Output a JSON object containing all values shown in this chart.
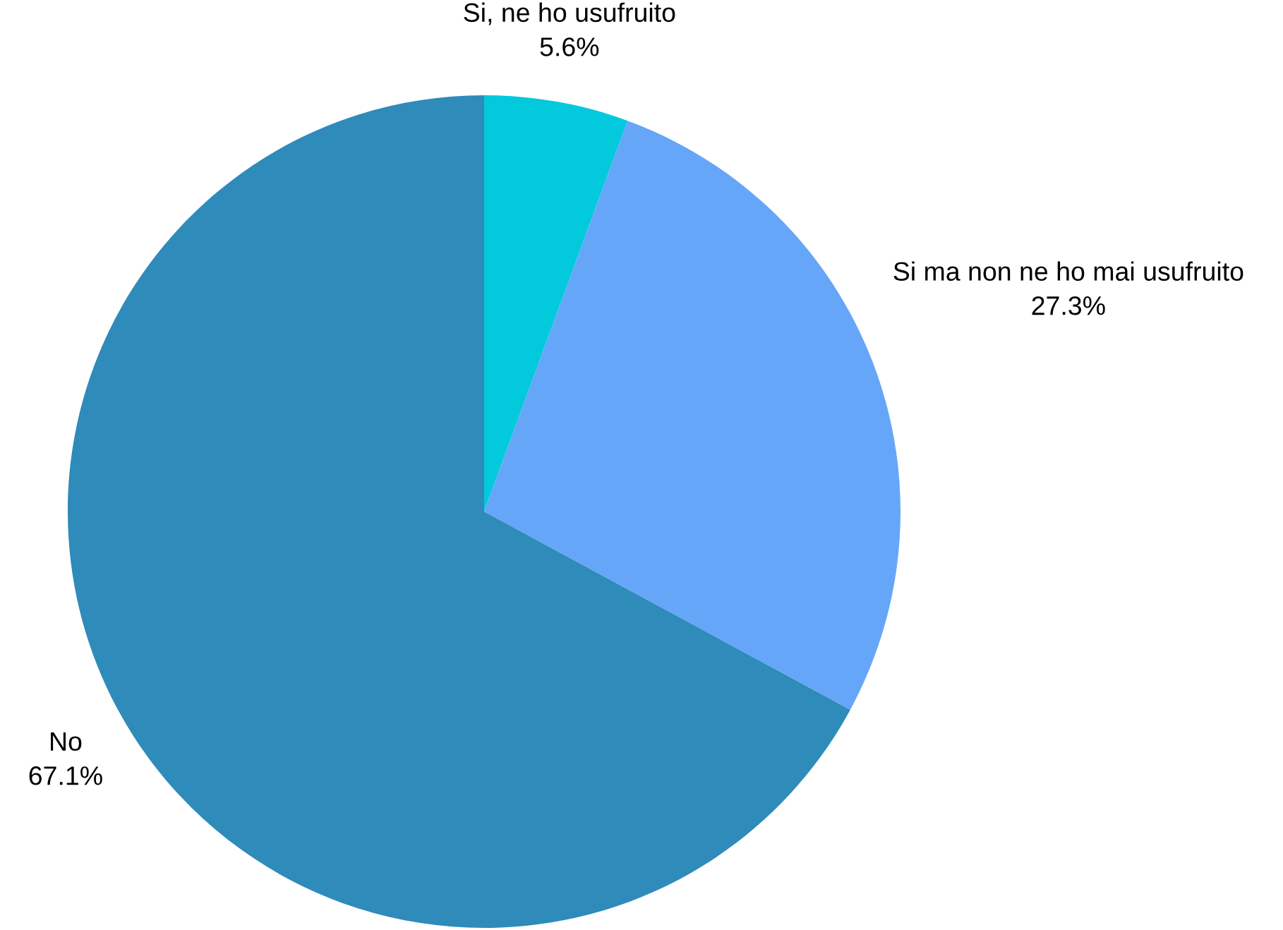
{
  "chart_data": {
    "type": "pie",
    "categories": [
      "Si, ne ho usufruito",
      "Si ma non ne ho mai usufruito",
      "No"
    ],
    "values": [
      5.6,
      27.3,
      67.1
    ],
    "value_labels": [
      "5.6%",
      "27.3%",
      "67.1%"
    ],
    "colors": [
      "#03c9dc",
      "#66a6f8",
      "#2e8bba"
    ]
  }
}
